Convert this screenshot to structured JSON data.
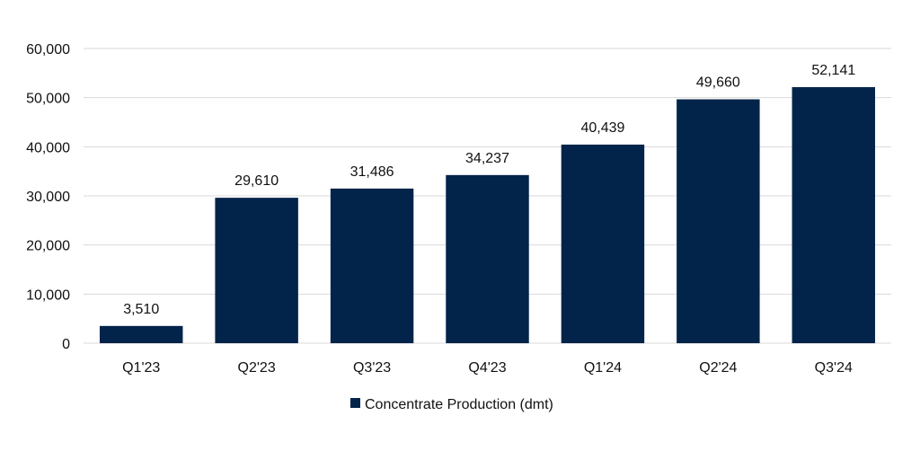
{
  "chart_data": {
    "type": "bar",
    "title": "",
    "xlabel": "",
    "ylabel": "",
    "categories": [
      "Q1'23",
      "Q2'23",
      "Q3'23",
      "Q4'23",
      "Q1'24",
      "Q2'24",
      "Q3'24"
    ],
    "series": [
      {
        "name": "Concentrate Production (dmt)",
        "color": "#03244a",
        "values": [
          3510,
          29610,
          31486,
          34237,
          40439,
          49660,
          52141
        ]
      }
    ],
    "data_labels": [
      "3,510",
      "29,610",
      "31,486",
      "34,237",
      "40,439",
      "49,660",
      "52,141"
    ],
    "ylim": [
      0,
      60000
    ],
    "yticks": [
      0,
      10000,
      20000,
      30000,
      40000,
      50000,
      60000
    ],
    "ytick_labels": [
      "0",
      "10,000",
      "20,000",
      "30,000",
      "40,000",
      "50,000",
      "60,000"
    ],
    "grid": true,
    "legend_position": "bottom"
  }
}
